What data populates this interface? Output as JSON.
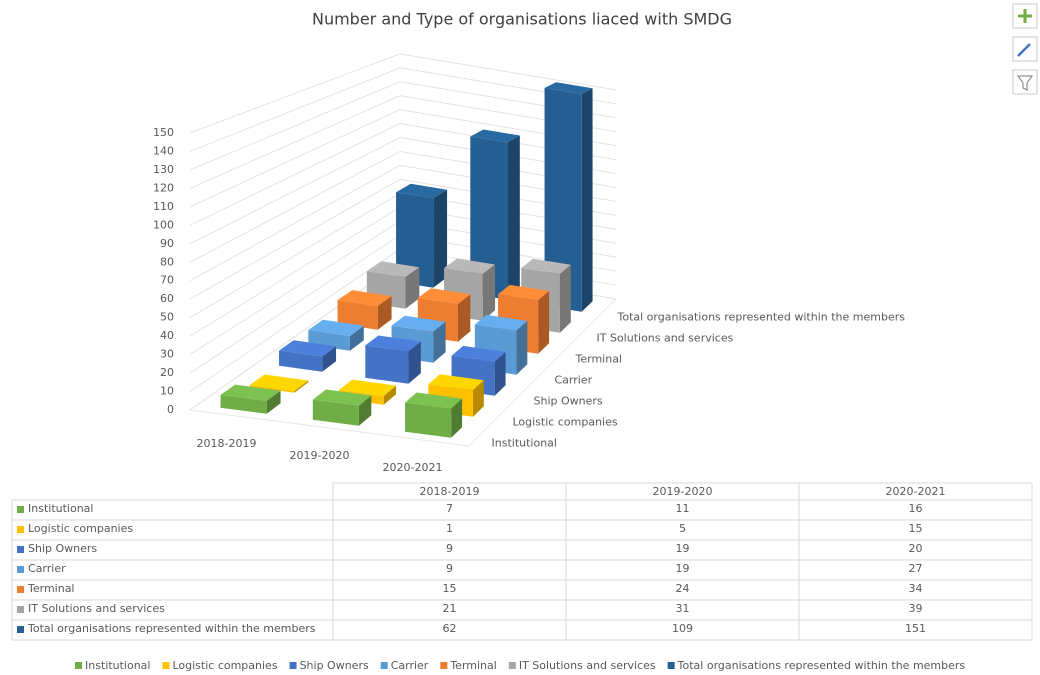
{
  "chart_data": {
    "type": "bar",
    "title": "Number and Type of organisations liaced with SMDG",
    "categories": [
      "2018-2019",
      "2019-2020",
      "2020-2021"
    ],
    "series": [
      {
        "name": "Institutional",
        "color": "#70ad47",
        "values": [
          7,
          11,
          16
        ]
      },
      {
        "name": "Logistic companies",
        "color": "#ffc000",
        "values": [
          1,
          5,
          15
        ]
      },
      {
        "name": "Ship Owners",
        "color": "#4472c4",
        "values": [
          9,
          19,
          20
        ]
      },
      {
        "name": "Carrier",
        "color": "#5b9bd5",
        "values": [
          9,
          19,
          27
        ]
      },
      {
        "name": "Terminal",
        "color": "#ed7d31",
        "values": [
          15,
          24,
          34
        ]
      },
      {
        "name": "IT Solutions and services",
        "color": "#a5a5a5",
        "values": [
          21,
          31,
          39
        ]
      },
      {
        "name": "Total organisations represented within the members",
        "color": "#255e91",
        "values": [
          62,
          109,
          151
        ]
      }
    ],
    "ylim": [
      0,
      150
    ],
    "yticks": [
      0,
      10,
      20,
      30,
      40,
      50,
      60,
      70,
      80,
      90,
      100,
      110,
      120,
      130,
      140,
      150
    ],
    "grid": true,
    "legend": "bottom"
  }
}
